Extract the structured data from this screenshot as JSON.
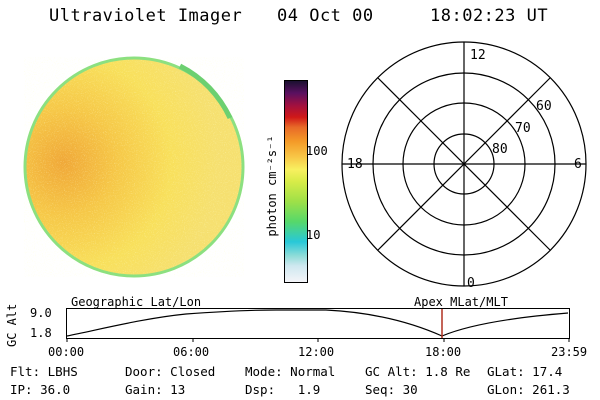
{
  "header": {
    "instrument": "Ultraviolet Imager",
    "date": "04 Oct 00",
    "time": "18:02:23 UT"
  },
  "colorbar": {
    "unit_label": "photon cm⁻²s⁻¹",
    "tick_100": "100",
    "tick_10": "10"
  },
  "polar_grid": {
    "mlt_labels": {
      "top": "12",
      "left": "18",
      "right": "6",
      "bottom": "0"
    },
    "lat_labels": {
      "outer": "60",
      "middle": "70",
      "inner": "80"
    }
  },
  "altitude_plot": {
    "left_title": "Geographic Lat/Lon",
    "right_title": "Apex MLat/MLT",
    "axis_label": "GC Alt",
    "y_ticks": [
      "9.0",
      "1.8"
    ],
    "x_ticks": [
      "00:00",
      "06:00",
      "12:00",
      "18:00",
      "23:59"
    ],
    "current_time_marker": "18:02",
    "marker_color": "#b03020"
  },
  "status": {
    "row1": [
      {
        "label": "Flt:",
        "value": "LBHS"
      },
      {
        "label": "Door:",
        "value": "Closed"
      },
      {
        "label": "Mode:",
        "value": "Normal"
      },
      {
        "label": "GC Alt:",
        "value": "1.8 Re"
      },
      {
        "label": "GLat:",
        "value": "17.4"
      }
    ],
    "row2": [
      {
        "label": "IP:",
        "value": "36.0"
      },
      {
        "label": "Gain:",
        "value": "13"
      },
      {
        "label": "Dsp:",
        "value": "1.9"
      },
      {
        "label": "Seq:",
        "value": "30"
      },
      {
        "label": "GLon:",
        "value": "261.3"
      }
    ]
  },
  "colors": {
    "disk_main": "#f6de58",
    "disk_warm": "#f2b03a",
    "disk_edge": "#7ad878"
  }
}
